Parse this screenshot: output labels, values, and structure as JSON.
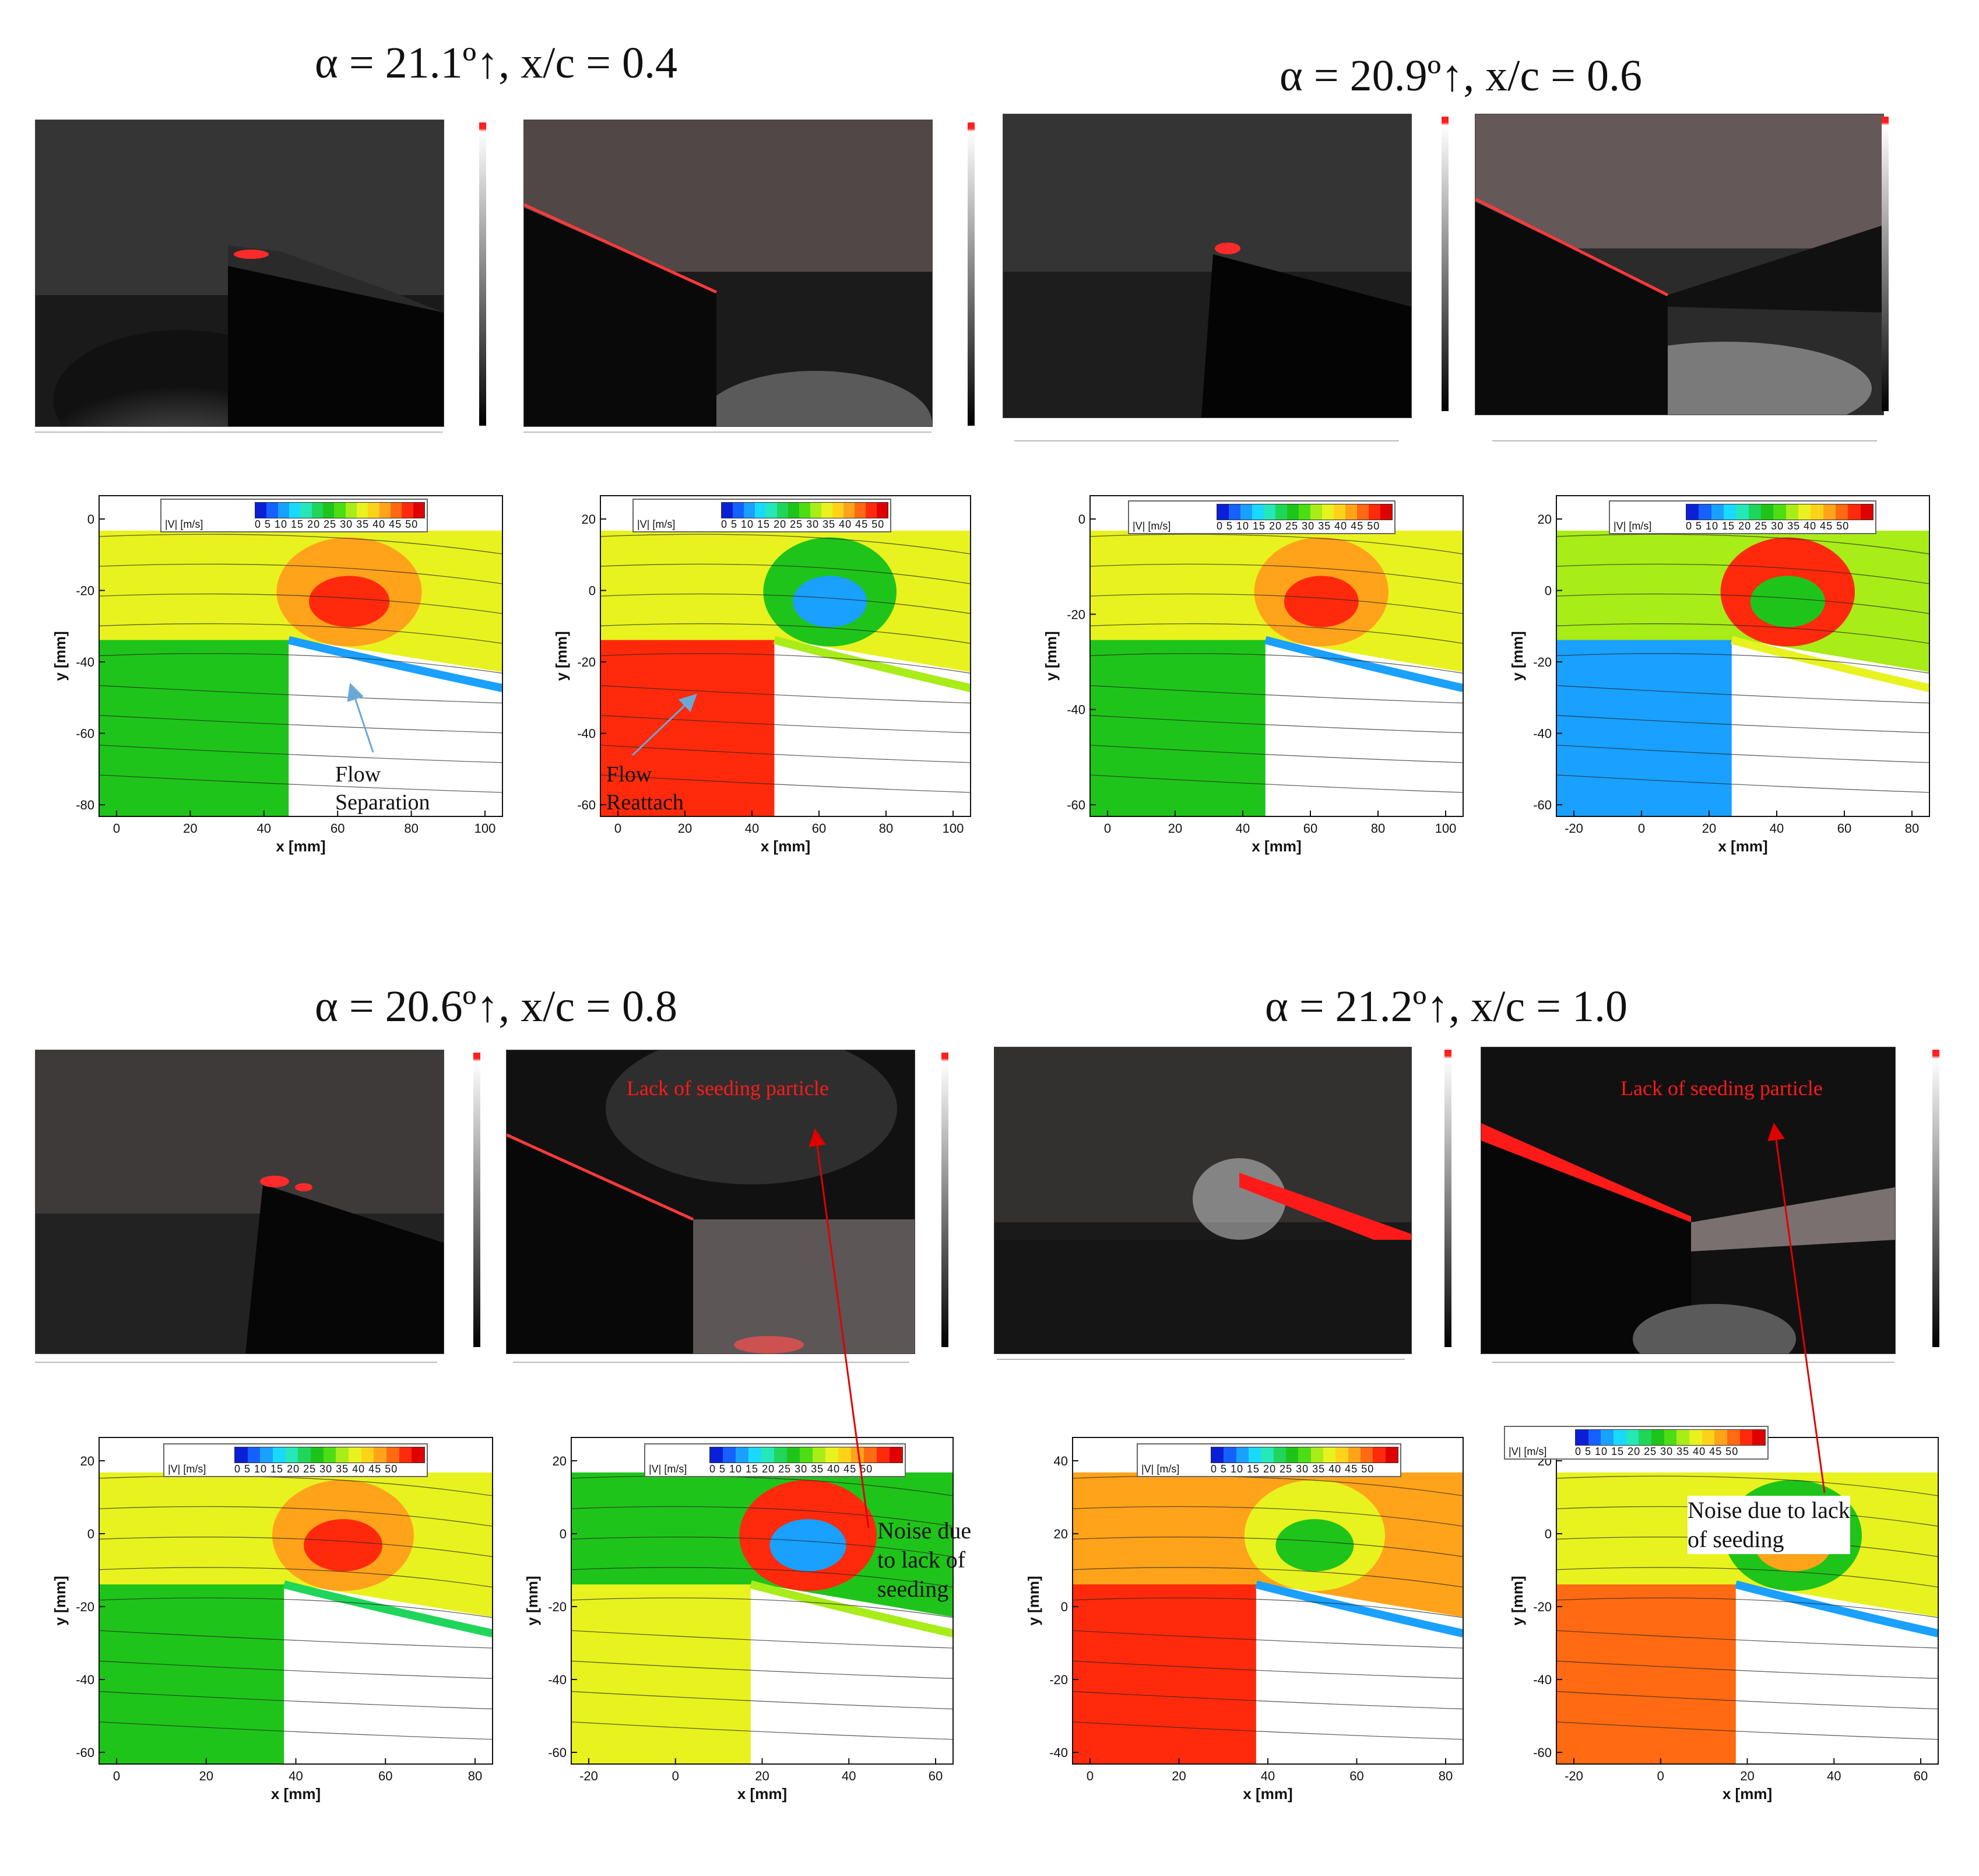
{
  "blocks": [
    {
      "title": "α = 21.1º↑, x/c = 0.4"
    },
    {
      "title": "α = 20.9º↑, x/c = 0.6"
    },
    {
      "title": "α = 20.6º↑, x/c = 0.8"
    },
    {
      "title": "α = 21.2º↑, x/c = 1.0"
    }
  ],
  "legend": {
    "label": "|V| [m/s]",
    "values": "0  5  10 15 20 25 30 35 40 45 50",
    "colors": [
      "#0a1fd6",
      "#1560ff",
      "#1aa0ff",
      "#19d9ff",
      "#25e7b8",
      "#1fd65a",
      "#1fc41a",
      "#4ddd14",
      "#a8ec18",
      "#e8f21e",
      "#ffd21a",
      "#ffa31a",
      "#ff6a12",
      "#ff2a0c",
      "#e00000"
    ]
  },
  "axes": {
    "x_label": "x [mm]",
    "y_label": "y [mm]"
  },
  "plots": [
    {
      "x_ticks": [
        "0",
        "20",
        "40",
        "60",
        "80",
        "100"
      ],
      "y_ticks": [
        "0",
        "-20",
        "-40",
        "-60",
        "-80"
      ]
    },
    {
      "x_ticks": [
        "0",
        "20",
        "40",
        "60",
        "80",
        "100"
      ],
      "y_ticks": [
        "20",
        "0",
        "-20",
        "-40",
        "-60"
      ]
    },
    {
      "x_ticks": [
        "0",
        "20",
        "40",
        "60",
        "80",
        "100"
      ],
      "y_ticks": [
        "0",
        "-20",
        "-40",
        "-60"
      ]
    },
    {
      "x_ticks": [
        "-20",
        "0",
        "20",
        "40",
        "60",
        "80"
      ],
      "y_ticks": [
        "20",
        "0",
        "-20",
        "-40",
        "-60"
      ]
    },
    {
      "x_ticks": [
        "0",
        "20",
        "40",
        "60",
        "80"
      ],
      "y_ticks": [
        "20",
        "0",
        "-20",
        "-40",
        "-60"
      ]
    },
    {
      "x_ticks": [
        "-20",
        "0",
        "20",
        "40",
        "60"
      ],
      "y_ticks": [
        "20",
        "0",
        "-20",
        "-40",
        "-60"
      ]
    },
    {
      "x_ticks": [
        "0",
        "20",
        "40",
        "60",
        "80"
      ],
      "y_ticks": [
        "40",
        "20",
        "0",
        "-20",
        "-40"
      ]
    },
    {
      "x_ticks": [
        "-20",
        "0",
        "20",
        "40",
        "60"
      ],
      "y_ticks": [
        "20",
        "0",
        "-20",
        "-40",
        "-60"
      ]
    }
  ],
  "annotations": {
    "flow_separation": "Flow\nSeparation",
    "flow_reattach": "Flow\nReattach",
    "lack_seeding": "Lack of seeding particle",
    "noise_1": "Noise due\nto lack of\nseeding",
    "noise_2": "Noise due to lack\nof seeding"
  }
}
